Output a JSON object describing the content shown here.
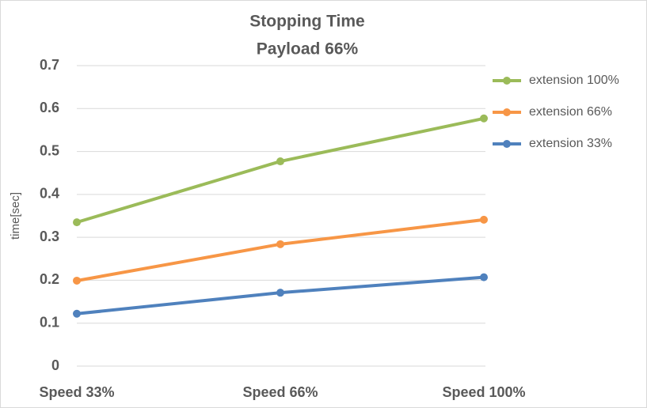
{
  "chart_data": {
    "type": "line",
    "title": "Stopping Time",
    "subtitle": "Payload 66%",
    "y_label": "time[sec]",
    "categories": [
      "Speed 33%",
      "Speed 66%",
      "Speed 100%"
    ],
    "series": [
      {
        "name": "extension 100%",
        "color": "#9bbb59",
        "values": [
          0.335,
          0.477,
          0.577
        ]
      },
      {
        "name": "extension 66%",
        "color": "#f79646",
        "values": [
          0.199,
          0.284,
          0.341
        ]
      },
      {
        "name": "extension 33%",
        "color": "#4f81bd",
        "values": [
          0.122,
          0.171,
          0.207
        ]
      }
    ],
    "ylim": [
      0,
      0.7
    ],
    "yticks": [
      0,
      0.1,
      0.2,
      0.3,
      0.4,
      0.5,
      0.6,
      0.7
    ],
    "grid": true,
    "legend": "right"
  }
}
